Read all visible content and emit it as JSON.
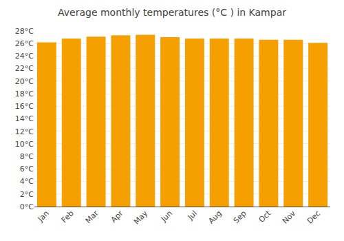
{
  "chart_data": {
    "type": "bar",
    "title": "Average monthly temperatures (°C ) in Kampar",
    "categories": [
      "Jan",
      "Feb",
      "Mar",
      "Apr",
      "May",
      "Jun",
      "Jul",
      "Aug",
      "Sep",
      "Oct",
      "Nov",
      "Dec"
    ],
    "values": [
      26.2,
      26.8,
      27.1,
      27.3,
      27.4,
      27.0,
      26.8,
      26.8,
      26.8,
      26.6,
      26.6,
      26.1
    ],
    "color": "#F5A000",
    "ylim": [
      0,
      28
    ],
    "yticks": [
      {
        "value": 0,
        "label": "0°C"
      },
      {
        "value": 2,
        "label": "2°C"
      },
      {
        "value": 4,
        "label": "4°C"
      },
      {
        "value": 6,
        "label": "6°C"
      },
      {
        "value": 8,
        "label": "8°C"
      },
      {
        "value": 10,
        "label": "10°C"
      },
      {
        "value": 12,
        "label": "12°C"
      },
      {
        "value": 14,
        "label": "14°C"
      },
      {
        "value": 16,
        "label": "16°C"
      },
      {
        "value": 18,
        "label": "18°C"
      },
      {
        "value": 20,
        "label": "20°C"
      },
      {
        "value": 22,
        "label": "22°C"
      },
      {
        "value": 24,
        "label": "24°C"
      },
      {
        "value": 26,
        "label": "26°C"
      },
      {
        "value": 28,
        "label": "28°C"
      }
    ],
    "grid": true
  }
}
